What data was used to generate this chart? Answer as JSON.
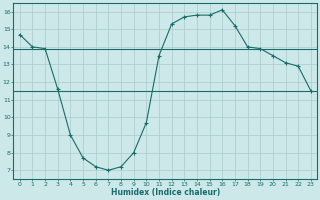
{
  "xlabel": "Humidex (Indice chaleur)",
  "xlim": [
    -0.5,
    23.5
  ],
  "ylim": [
    6.5,
    16.5
  ],
  "xticks": [
    0,
    1,
    2,
    3,
    4,
    5,
    6,
    7,
    8,
    9,
    10,
    11,
    12,
    13,
    14,
    15,
    16,
    17,
    18,
    19,
    20,
    21,
    22,
    23
  ],
  "yticks": [
    7,
    8,
    9,
    10,
    11,
    12,
    13,
    14,
    15,
    16
  ],
  "bg_color": "#cce8e8",
  "line_color": "#1a6b6b",
  "curve1_x": [
    0,
    1,
    2,
    3,
    4,
    5,
    6,
    7,
    8,
    9,
    10,
    11,
    12,
    13,
    14,
    15,
    16,
    17,
    18,
    19,
    20,
    21,
    22,
    23
  ],
  "curve1_y": [
    14.7,
    14.0,
    13.9,
    11.6,
    9.0,
    7.7,
    7.2,
    7.0,
    7.2,
    8.0,
    9.7,
    13.5,
    15.3,
    15.7,
    15.8,
    15.8,
    16.1,
    15.2,
    14.0,
    13.9,
    13.5,
    13.1,
    12.9,
    11.5
  ],
  "hline1_y": 13.9,
  "hline2_y": 11.5,
  "grid_color": "#aacccc"
}
